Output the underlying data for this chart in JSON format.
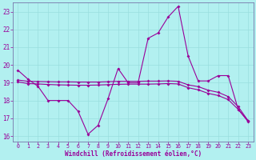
{
  "xlabel": "Windchill (Refroidissement éolien,°C)",
  "background_color": "#b2f0f0",
  "grid_color": "#99dede",
  "line_color": "#990099",
  "spine_color": "#7777aa",
  "xlim": [
    -0.5,
    23.5
  ],
  "ylim": [
    15.7,
    23.5
  ],
  "yticks": [
    16,
    17,
    18,
    19,
    20,
    21,
    22,
    23
  ],
  "xticks": [
    0,
    1,
    2,
    3,
    4,
    5,
    6,
    7,
    8,
    9,
    10,
    11,
    12,
    13,
    14,
    15,
    16,
    17,
    18,
    19,
    20,
    21,
    22,
    23
  ],
  "line1_x": [
    0,
    1,
    2,
    3,
    4,
    5,
    6,
    7,
    8,
    9,
    10,
    11,
    12,
    13,
    14,
    15,
    16,
    17,
    18,
    19,
    20,
    21,
    22,
    23
  ],
  "line1_y": [
    19.7,
    19.2,
    18.8,
    18.0,
    18.0,
    18.0,
    17.4,
    16.1,
    16.6,
    18.1,
    19.8,
    19.0,
    19.0,
    21.5,
    21.8,
    22.7,
    23.3,
    20.5,
    19.1,
    19.1,
    19.4,
    19.4,
    17.5,
    16.8
  ],
  "line2_x": [
    0,
    1,
    2,
    3,
    4,
    5,
    6,
    7,
    8,
    9,
    10,
    11,
    12,
    13,
    14,
    15,
    16,
    17,
    18,
    19,
    20,
    21,
    22,
    23
  ],
  "line2_y": [
    19.05,
    18.95,
    18.93,
    18.9,
    18.88,
    18.87,
    18.86,
    18.86,
    18.87,
    18.89,
    18.91,
    18.92,
    18.92,
    18.92,
    18.93,
    18.95,
    18.93,
    18.72,
    18.6,
    18.4,
    18.28,
    18.05,
    17.5,
    16.85
  ],
  "line3_x": [
    0,
    1,
    2,
    3,
    4,
    5,
    6,
    7,
    8,
    9,
    10,
    11,
    12,
    13,
    14,
    15,
    16,
    17,
    18,
    19,
    20,
    21,
    22,
    23
  ],
  "line3_y": [
    19.15,
    19.08,
    19.07,
    19.06,
    19.05,
    19.05,
    19.04,
    19.04,
    19.04,
    19.06,
    19.08,
    19.08,
    19.08,
    19.09,
    19.09,
    19.1,
    19.08,
    18.88,
    18.78,
    18.58,
    18.46,
    18.22,
    17.65,
    16.85
  ]
}
